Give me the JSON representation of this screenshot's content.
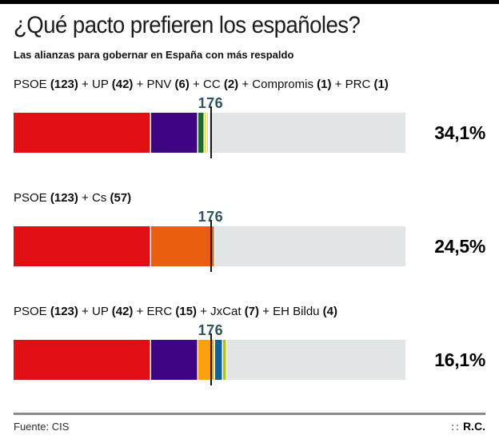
{
  "header": {
    "title": "¿Qué pacto prefieren los españoles?",
    "subtitle": "Las alianzas para gobernar en España con más respaldo"
  },
  "footer": {
    "source": "Fuente: CIS",
    "credit_sep": "::",
    "credit": "R.C."
  },
  "chart_data": {
    "type": "bar",
    "title": "¿Qué pacto prefieren los españoles?",
    "subtitle": "Las alianzas para gobernar en España con más respaldo",
    "total_seats": 350,
    "majority_seats": 176,
    "majority_label": "176",
    "majority_label_color": "#2f545c",
    "marker_color": "#1a1a1a",
    "remainder_color": "#e1e5e6",
    "separator_color": "#ffffff",
    "rows": [
      {
        "support_pct": "34,1%",
        "coalition_seats": 175,
        "parties": [
          {
            "name": "PSOE",
            "seats": 123,
            "color": "#e10e14"
          },
          {
            "name": "UP",
            "seats": 42,
            "color": "#3f0483"
          },
          {
            "name": "PNV",
            "seats": 6,
            "color": "#1b6b2f"
          },
          {
            "name": "CC",
            "seats": 2,
            "color": "#ffd500"
          },
          {
            "name": "Compromis",
            "seats": 1,
            "color": "#f0876a"
          },
          {
            "name": "PRC",
            "seats": 1,
            "color": "#c94f43"
          }
        ]
      },
      {
        "support_pct": "24,5%",
        "coalition_seats": 180,
        "parties": [
          {
            "name": "PSOE",
            "seats": 123,
            "color": "#e10e14"
          },
          {
            "name": "Cs",
            "seats": 57,
            "color": "#e95e0f"
          }
        ]
      },
      {
        "support_pct": "16,1%",
        "coalition_seats": 191,
        "parties": [
          {
            "name": "PSOE",
            "seats": 123,
            "color": "#e10e14"
          },
          {
            "name": "UP",
            "seats": 42,
            "color": "#3f0483"
          },
          {
            "name": "ERC",
            "seats": 15,
            "color": "#fba10e"
          },
          {
            "name": "JxCat",
            "seats": 7,
            "color": "#0f6396"
          },
          {
            "name": "EH Bildu",
            "seats": 4,
            "color": "#aec90b"
          }
        ]
      }
    ]
  }
}
